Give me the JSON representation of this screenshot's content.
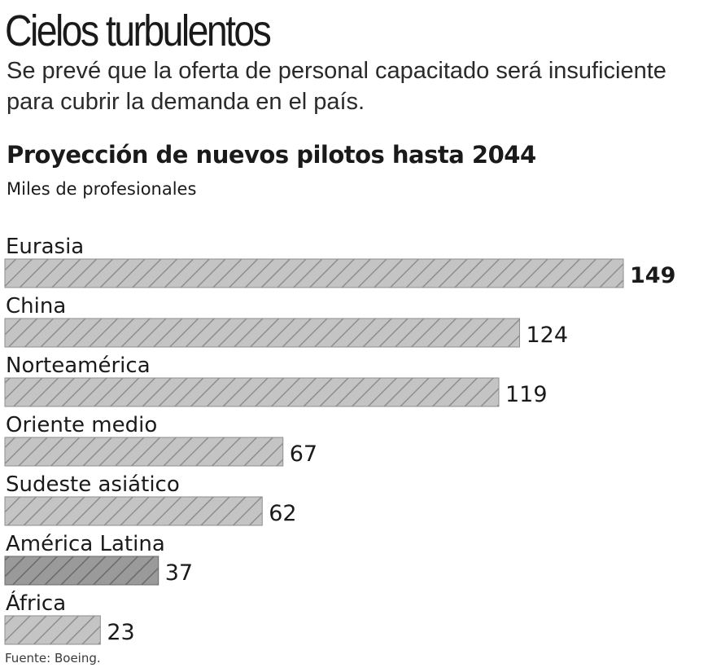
{
  "header": {
    "title": "Cielos turbulentos",
    "subtitle": "Se prevé que la oferta de personal capacitado será insuficiente para cubrir la demanda en el país."
  },
  "chart_data": {
    "type": "bar",
    "orientation": "horizontal",
    "title": "Proyección de nuevos pilotos hasta 2044",
    "unit_label": "Miles de profesionales",
    "categories": [
      "Eurasia",
      "China",
      "Norteamérica",
      "Oriente medio",
      "Sudeste asiático",
      "América Latina",
      "África"
    ],
    "values": [
      149,
      124,
      119,
      67,
      62,
      37,
      23
    ],
    "highlight_max_value": true,
    "highlight_category": "América Latina",
    "xlim": [
      0,
      149
    ],
    "grid": false,
    "legend": "none"
  },
  "colors": {
    "bar_fill": "#c4c4c4",
    "bar_hatch": "#8e8e8e",
    "highlight_fill": "#9a9a9a",
    "highlight_hatch": "#6a6a6a",
    "text": "#1a1a1a"
  },
  "footer": {
    "source": "Fuente: Boeing."
  }
}
